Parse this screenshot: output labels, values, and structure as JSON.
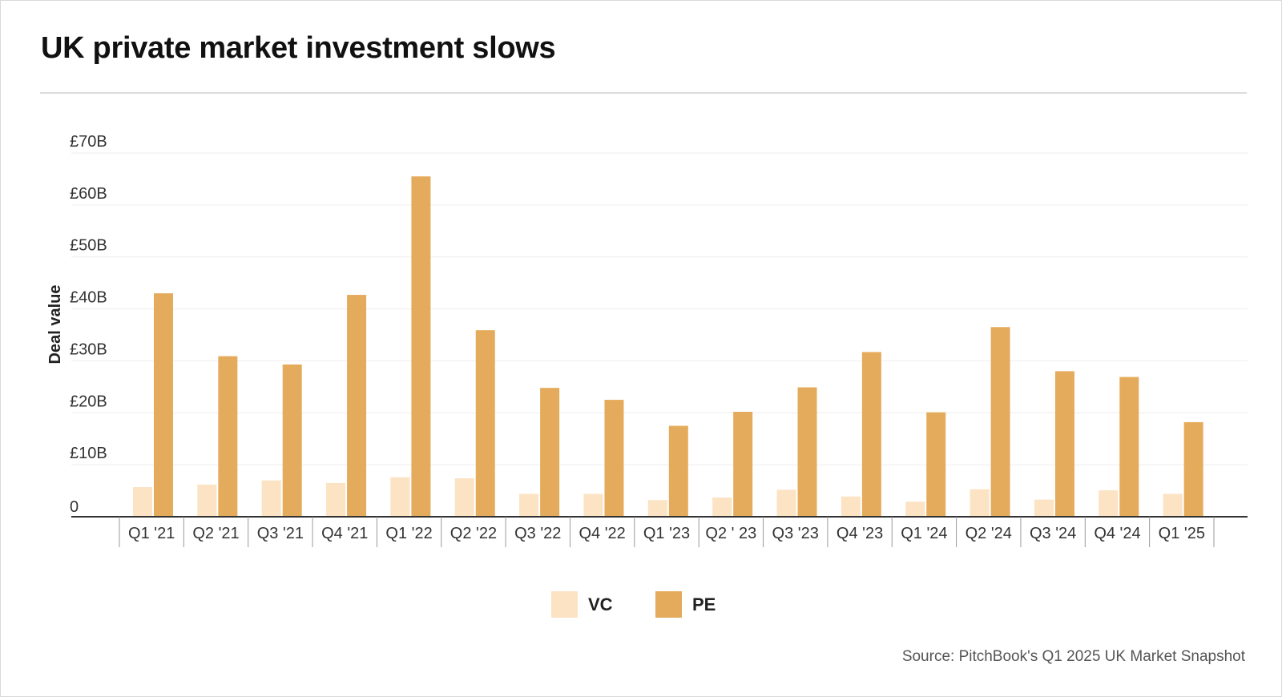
{
  "title": "UK private market investment slows",
  "source": "Source: PitchBook's Q1 2025 UK Market Snapshot",
  "colors": {
    "VC": "#fbe3c4",
    "PE": "#e5ab5c",
    "axis": "#333333",
    "grid": "#eeeeee"
  },
  "chart_data": {
    "type": "bar",
    "title": "UK private market investment slows",
    "xlabel": "",
    "ylabel": "Deal value",
    "ylim": [
      0,
      70
    ],
    "yticks": [
      0,
      10,
      20,
      30,
      40,
      50,
      60,
      70
    ],
    "ytick_labels": [
      "0",
      "£10B",
      "£20B",
      "£30B",
      "£40B",
      "£50B",
      "£60B",
      "£70B"
    ],
    "categories": [
      "Q1 '21",
      "Q2 '21",
      "Q3 '21",
      "Q4 '21",
      "Q1 '22",
      "Q2 '22",
      "Q3 '22",
      "Q4 '22",
      "Q1 '23",
      "Q2 ' 23",
      "Q3 '23",
      "Q4 '23",
      "Q1 '24",
      "Q2 '24",
      "Q3 '24",
      "Q4 '24",
      "Q1 '25"
    ],
    "series": [
      {
        "name": "VC",
        "values": [
          5.7,
          6.2,
          7.0,
          6.5,
          7.6,
          7.4,
          4.4,
          4.4,
          3.2,
          3.7,
          5.2,
          3.9,
          2.9,
          5.3,
          3.3,
          5.1,
          4.4
        ]
      },
      {
        "name": "PE",
        "values": [
          43.0,
          30.9,
          29.3,
          42.7,
          65.5,
          35.9,
          24.8,
          22.5,
          17.5,
          20.2,
          24.9,
          31.7,
          20.1,
          36.5,
          28.0,
          26.9,
          18.2
        ]
      }
    ],
    "grid": true,
    "legend": "bottom-center"
  }
}
